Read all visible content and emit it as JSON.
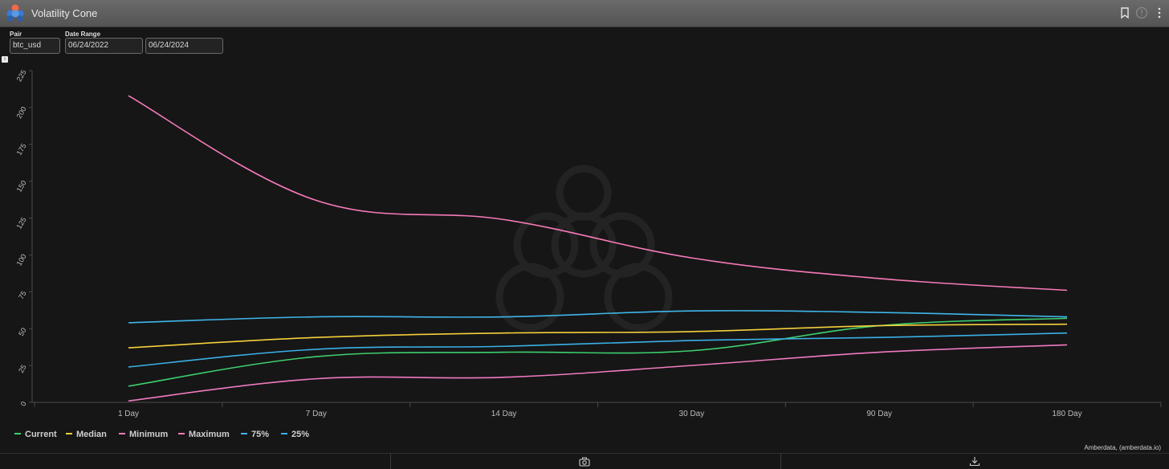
{
  "window": {
    "title": "Volatility Cone"
  },
  "filters": {
    "pair_label": "Pair",
    "pair_value": "btc_usd",
    "date_range_label": "Date Range",
    "start_date": "06/24/2022",
    "end_date": "06/24/2024"
  },
  "credit": "Amberdata, (amberdata.io)",
  "icons": {
    "bookmark": "bookmark-icon",
    "info": "info-icon",
    "menu": "more-vertical-icon",
    "camera": "camera-icon",
    "download": "download-icon",
    "collapse": "chevron-right-icon"
  },
  "chart_data": {
    "type": "line",
    "title": "",
    "xlabel": "",
    "ylabel": "",
    "categories": [
      "1 Day",
      "7 Day",
      "14 Day",
      "30 Day",
      "90 Day",
      "180 Day"
    ],
    "ylim": [
      0,
      225
    ],
    "yticks": [
      "0",
      "25",
      "50",
      "75",
      "100",
      "125",
      "150",
      "175",
      "200",
      "225"
    ],
    "grid": false,
    "legend_position": "bottom-left",
    "series": [
      {
        "name": "Current",
        "color": "#3ecf6e",
        "values": [
          11,
          31,
          34,
          35,
          52,
          57
        ]
      },
      {
        "name": "Median",
        "color": "#f5d03b",
        "values": [
          37,
          44,
          47,
          48,
          52,
          53
        ]
      },
      {
        "name": "Minimum",
        "color": "#f07ac1",
        "values": [
          1,
          16,
          17,
          25,
          34,
          39
        ]
      },
      {
        "name": "Maximum",
        "color": "#f77ab8",
        "values": [
          208,
          137,
          124,
          98,
          84,
          76
        ]
      },
      {
        "name": "75%",
        "color": "#3fb6ea",
        "values": [
          54,
          58,
          58,
          62,
          61,
          58
        ]
      },
      {
        "name": "25%",
        "color": "#3ab0e6",
        "values": [
          24,
          36,
          38,
          42,
          44,
          47
        ]
      }
    ]
  }
}
